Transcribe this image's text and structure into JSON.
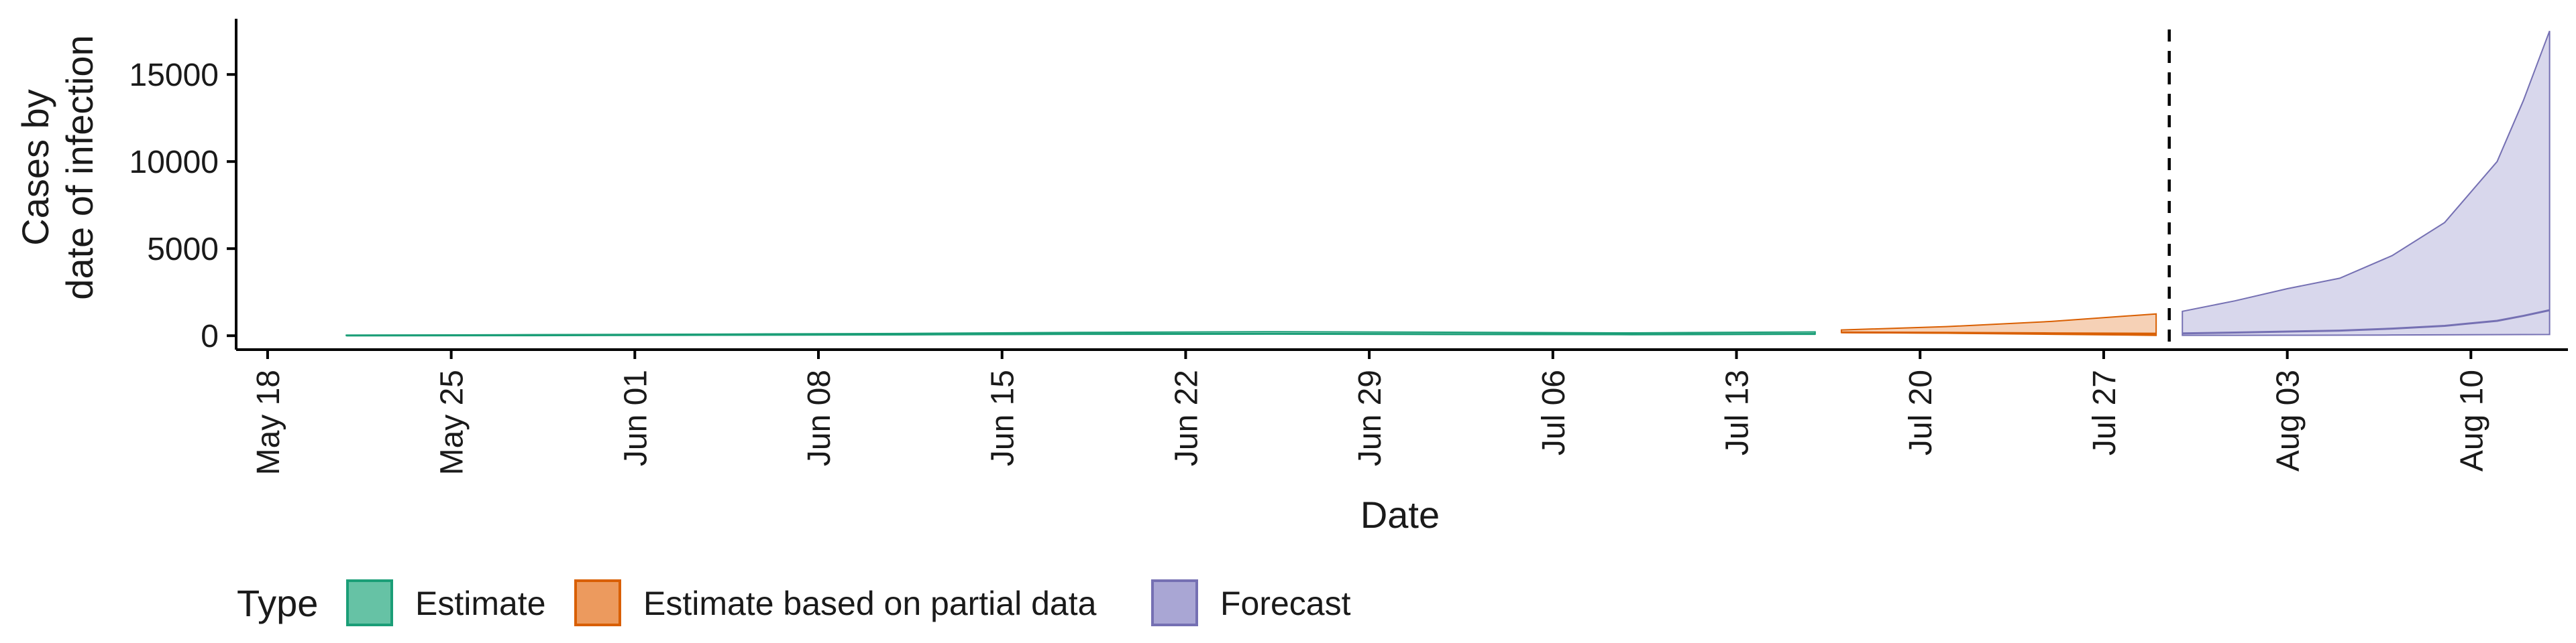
{
  "chart_data": {
    "type": "area",
    "title": "",
    "xlabel": "Date",
    "ylabel_lines": [
      "Cases by",
      "date of infection"
    ],
    "x_ticks": [
      "May 18",
      "May 25",
      "Jun 01",
      "Jun 08",
      "Jun 15",
      "Jun 22",
      "Jun 29",
      "Jul 06",
      "Jul 13",
      "Jul 20",
      "Jul 27",
      "Aug 03",
      "Aug 10"
    ],
    "y_ticks": [
      0,
      5000,
      10000,
      15000
    ],
    "ylim": [
      -800,
      18200
    ],
    "xlim_day": [
      -1.2,
      87.7
    ],
    "date_origin": "May 18",
    "vline_day": 72.5,
    "legend": {
      "title": "Type",
      "position": "bottom-left",
      "entries": [
        {
          "label": "Estimate",
          "fill": "#66c2a5",
          "stroke": "#1b9e77"
        },
        {
          "label": "Estimate based on partial data",
          "fill": "#ec9a5e",
          "stroke": "#d95f02"
        },
        {
          "label": "Forecast",
          "fill": "#a9a6d4",
          "stroke": "#7570b3"
        }
      ]
    },
    "series": [
      {
        "name": "Estimate",
        "color": "#1b9e77",
        "fill": "#66c2a5",
        "x_day": [
          3,
          10,
          17,
          24,
          31,
          38,
          45,
          52,
          59
        ],
        "lower": [
          10,
          20,
          40,
          60,
          90,
          100,
          80,
          70,
          90
        ],
        "upper": [
          30,
          60,
          90,
          130,
          190,
          230,
          200,
          160,
          220
        ]
      },
      {
        "name": "Estimate based on partial data",
        "color": "#d95f02",
        "fill": "#ec9a5e",
        "x_day": [
          60,
          64,
          68,
          72
        ],
        "lower": [
          180,
          140,
          80,
          20
        ],
        "upper": [
          330,
          520,
          820,
          1250
        ]
      },
      {
        "name": "Forecast",
        "color": "#7570b3",
        "fill": "#a9a6d4",
        "x_day": [
          73,
          75,
          77,
          79,
          81,
          83,
          85,
          86,
          87
        ],
        "lower": [
          20,
          20,
          25,
          30,
          40,
          50,
          60,
          65,
          70
        ],
        "upper": [
          1400,
          2000,
          2700,
          3300,
          4600,
          6500,
          10000,
          13500,
          17500
        ]
      }
    ]
  }
}
